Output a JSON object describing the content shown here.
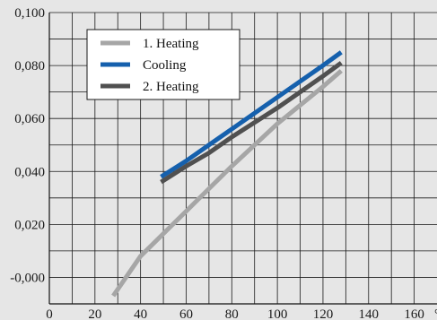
{
  "chart_data": {
    "type": "line",
    "title": "",
    "xlabel": "",
    "ylabel": "",
    "x_unit": "°C",
    "xlim": [
      0,
      170
    ],
    "ylim": [
      -0.01,
      0.1
    ],
    "x_ticks": [
      0,
      20,
      40,
      60,
      80,
      100,
      120,
      140,
      160
    ],
    "x_tick_labels": [
      "0",
      "20",
      "40",
      "60",
      "80",
      "100",
      "120",
      "140",
      "160"
    ],
    "y_ticks": [
      0.0,
      0.02,
      0.04,
      0.06,
      0.08,
      0.1
    ],
    "y_tick_labels": [
      "-0,000",
      "0,020",
      "0,040",
      "0,060",
      "0,080",
      "0,100"
    ],
    "grid": true,
    "grid_x_step": 10,
    "grid_y_step": 0.01,
    "legend_position": "top-left",
    "series": [
      {
        "name": "1. Heating",
        "color": "#a6a6a6",
        "x": [
          28,
          40,
          60,
          80,
          100,
          120,
          128
        ],
        "y": [
          -0.007,
          0.008,
          0.025,
          0.042,
          0.058,
          0.072,
          0.078
        ]
      },
      {
        "name": "Cooling",
        "color": "#1560ad",
        "x": [
          49,
          60,
          70,
          80,
          100,
          120,
          128
        ],
        "y": [
          0.038,
          0.044,
          0.05,
          0.056,
          0.068,
          0.08,
          0.085
        ]
      },
      {
        "name": "2. Heating",
        "color": "#505050",
        "x": [
          49,
          60,
          70,
          80,
          100,
          120,
          128
        ],
        "y": [
          0.036,
          0.042,
          0.047,
          0.053,
          0.064,
          0.076,
          0.081
        ]
      }
    ]
  }
}
